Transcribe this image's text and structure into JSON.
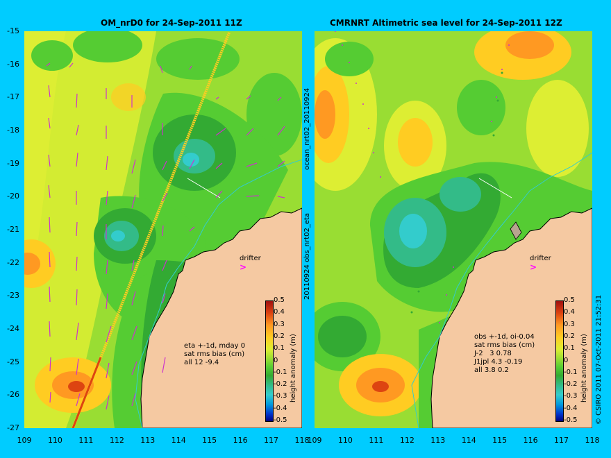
{
  "left_panel": {
    "title": "OM_nrD0 for 24-Sep-2011 11Z",
    "stats": "eta +-1d, mday 0\nsat rms bias (cm)\nall 12 -9.4",
    "drifter_label": "drifter"
  },
  "right_panel": {
    "title": "CMRNRT Altimetric sea level  for 24-Sep-2011 12Z",
    "stats": "obs +-1d, oi-0.04\nsat rms bias (cm)\nJ-2   3 0.78\nJ1jpl 4.3 -0.19\nall 3.8 0.2",
    "drifter_label": "drifter"
  },
  "side_labels": {
    "top": "ocean_nrt02_20110924",
    "bottom": "20110924 obs_nrt02_eta"
  },
  "copyright": "© CSIRO 2011   07-Oct-2011 21:52:31",
  "colorbar": {
    "label": "height anomaly (m)",
    "ticks": [
      "0.5",
      "0.4",
      "0.3",
      "0.2",
      "0.1",
      "0",
      "-0.1",
      "-0.2",
      "-0.3",
      "-0.4",
      "-0.5"
    ]
  },
  "axes": {
    "lat_ticks": [
      "-15",
      "-16",
      "-17",
      "-18",
      "-19",
      "-20",
      "-21",
      "-22",
      "-23",
      "-24",
      "-25",
      "-26",
      "-27"
    ],
    "lon_ticks": [
      "109",
      "110",
      "111",
      "112",
      "113",
      "114",
      "115",
      "116",
      "117",
      "118"
    ]
  },
  "colors": {
    "background": "#00ccff",
    "land": "#f5c9a2",
    "arrow": "#cc33cc",
    "colormap": [
      "#000080",
      "#0033cc",
      "#0099dd",
      "#33cccc",
      "#33bb88",
      "#33aa33",
      "#55cc33",
      "#99dd33",
      "#ddee33",
      "#ffcc22",
      "#ff9922",
      "#dd4411",
      "#a01010"
    ]
  }
}
